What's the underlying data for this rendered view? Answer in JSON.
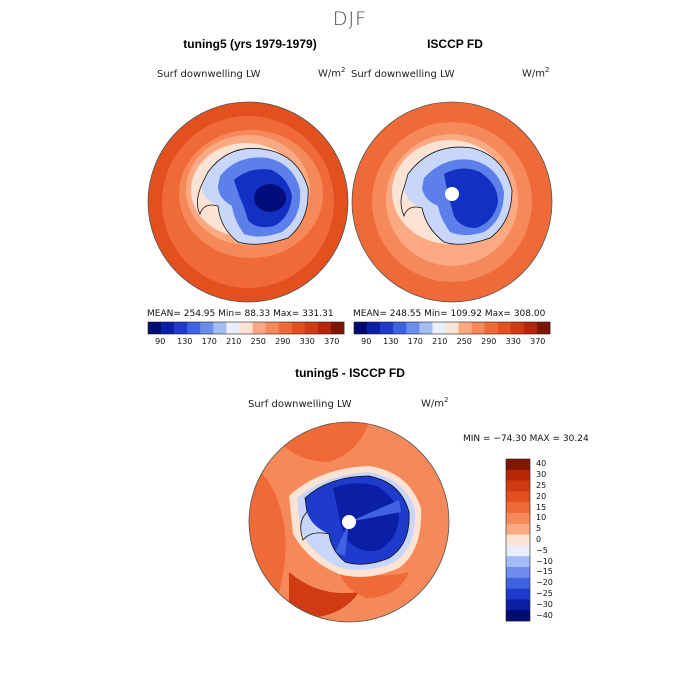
{
  "title": "DJF",
  "colors": {
    "red_scale": [
      "#801600",
      "#b8260a",
      "#d13b13",
      "#e3501f",
      "#ef6a37",
      "#f6895a",
      "#fba982",
      "#fdc9ad",
      "#fde3d3"
    ],
    "blue_scale": [
      "#f1f4fd",
      "#c8d6fa",
      "#a4bbf6",
      "#7f9cf0",
      "#5c7fe9",
      "#3e62e0",
      "#2446d3",
      "#1230c2",
      "#0a1fa5",
      "#000d7a"
    ],
    "abs_scale": [
      "#000a70",
      "#0a1fa5",
      "#1f3bcc",
      "#3e62e0",
      "#6e8cec",
      "#a4bbf6",
      "#e8eefc",
      "#fde3d3",
      "#fba982",
      "#f6895a",
      "#ef6a37",
      "#e3501f",
      "#d13b13",
      "#b8260a",
      "#801600"
    ]
  },
  "panels": {
    "model": {
      "title": "tuning5 (yrs 1979-1979)",
      "variable": "Surf downwelling LW",
      "units": "W/m",
      "units_sup": "2",
      "stats": "MEAN= 254.95   Min=   88.33   Max= 331.31"
    },
    "obs": {
      "title": "ISCCP FD",
      "variable": "Surf downwelling LW",
      "units": "W/m",
      "units_sup": "2",
      "stats": "MEAN= 248.55   Min=  109.92   Max= 308.00"
    },
    "diff": {
      "title": "tuning5 - ISCCP FD",
      "variable": "Surf downwelling LW",
      "units": "W/m",
      "units_sup": "2",
      "stats": "MIN = −74.30 MAX =  30.24"
    }
  },
  "chart_data": [
    {
      "type": "heatmap",
      "title": "tuning5 (yrs 1979-1979)",
      "projection": "south polar stereographic",
      "colorbar_ticks": [
        "90",
        "130",
        "170",
        "210",
        "250",
        "290",
        "330",
        "370"
      ],
      "colorbar_orientation": "horizontal",
      "mean": 254.95,
      "min": 88.33,
      "max": 331.31
    },
    {
      "type": "heatmap",
      "title": "ISCCP FD",
      "projection": "south polar stereographic",
      "colorbar_ticks": [
        "90",
        "130",
        "170",
        "210",
        "250",
        "290",
        "330",
        "370"
      ],
      "colorbar_orientation": "horizontal",
      "mean": 248.55,
      "min": 109.92,
      "max": 308.0
    },
    {
      "type": "heatmap",
      "title": "tuning5 - ISCCP FD",
      "projection": "south polar stereographic",
      "colorbar_ticks": [
        "40",
        "30",
        "25",
        "20",
        "15",
        "10",
        "5",
        "0",
        "−5",
        "−10",
        "−15",
        "−20",
        "−25",
        "−30",
        "−40"
      ],
      "colorbar_orientation": "vertical",
      "min": -74.3,
      "max": 30.24
    }
  ]
}
